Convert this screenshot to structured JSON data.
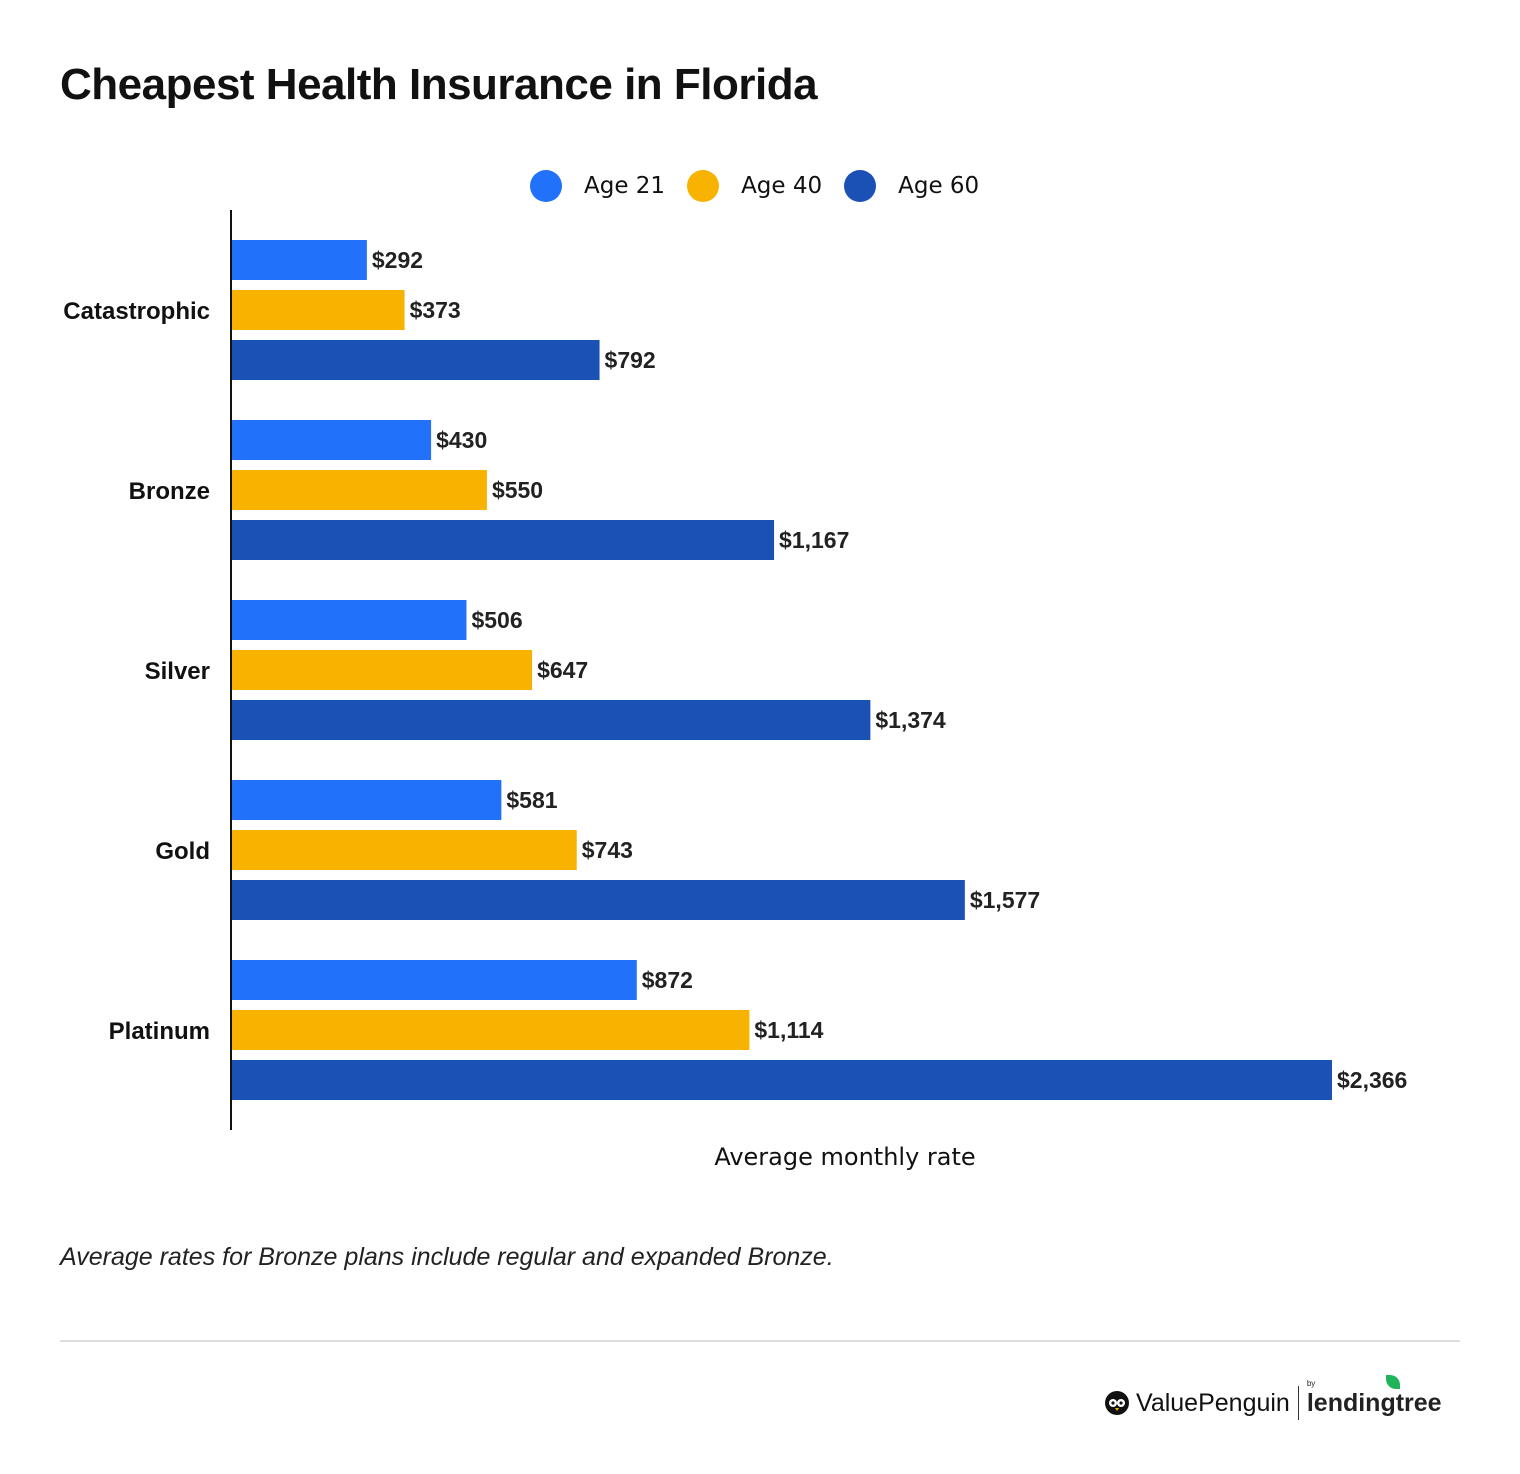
{
  "title": "Cheapest Health Insurance in Florida",
  "note": "Average rates for Bronze plans include regular and expanded Bronze.",
  "logo": {
    "brand": "ValuePenguin",
    "by": "by",
    "partner": "lendingtree"
  },
  "chart_data": {
    "type": "bar",
    "orientation": "horizontal",
    "title": "Cheapest Health Insurance in Florida",
    "xlabel": "Average monthly rate",
    "ylabel": "",
    "categories": [
      "Catastrophic",
      "Bronze",
      "Silver",
      "Gold",
      "Platinum"
    ],
    "series": [
      {
        "name": "Age 21",
        "color": "#2271fa",
        "values": [
          292,
          430,
          506,
          581,
          872
        ],
        "labels": [
          "$292",
          "$430",
          "$506",
          "$581",
          "$872"
        ]
      },
      {
        "name": "Age 40",
        "color": "#f8b300",
        "values": [
          373,
          550,
          647,
          743,
          1114
        ],
        "labels": [
          "$373",
          "$550",
          "$647",
          "$743",
          "$1,114"
        ]
      },
      {
        "name": "Age 60",
        "color": "#1b51b4",
        "values": [
          792,
          1167,
          1374,
          1577,
          2366
        ],
        "labels": [
          "$792",
          "$1,167",
          "$1,374",
          "$1,577",
          "$2,366"
        ]
      }
    ],
    "legend": "top-center",
    "grid": false
  }
}
